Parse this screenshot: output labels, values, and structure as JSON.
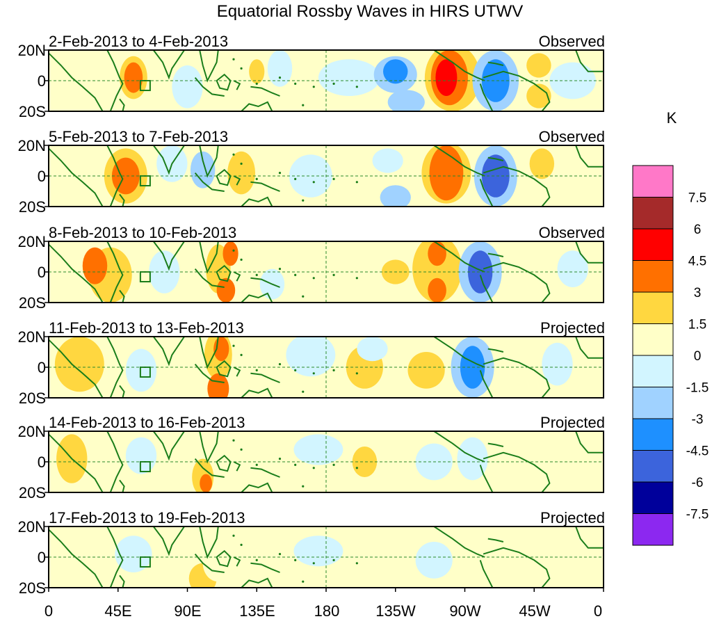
{
  "title": "Equatorial Rossby Waves in HIRS UTWV",
  "units_label": "K",
  "panels": [
    {
      "date_range": "2-Feb-2013 to 4-Feb-2013",
      "status": "Observed"
    },
    {
      "date_range": "5-Feb-2013 to 7-Feb-2013",
      "status": "Observed"
    },
    {
      "date_range": "8-Feb-2013 to 10-Feb-2013",
      "status": "Observed"
    },
    {
      "date_range": "11-Feb-2013 to 13-Feb-2013",
      "status": "Projected"
    },
    {
      "date_range": "14-Feb-2013 to 16-Feb-2013",
      "status": "Projected"
    },
    {
      "date_range": "17-Feb-2013 to 19-Feb-2013",
      "status": "Projected"
    }
  ],
  "lat_labels": [
    "20N",
    "0",
    "20S"
  ],
  "lon_labels": [
    "0",
    "45E",
    "90E",
    "135E",
    "180",
    "135W",
    "90W",
    "45W",
    "0"
  ],
  "colorbar": {
    "labels": [
      "7.5",
      "6",
      "4.5",
      "3",
      "1.5",
      "0",
      "-1.5",
      "-3",
      "-4.5",
      "-6",
      "-7.5"
    ],
    "colors": [
      "#ff78c8",
      "#a52a2a",
      "#ff0000",
      "#ff7000",
      "#ffd740",
      "#ffffc8",
      "#d2f5ff",
      "#a0d2ff",
      "#1e90ff",
      "#3c64dc",
      "#00009b",
      "#8c28f0"
    ]
  },
  "line_colors": {
    "coast": "#1a7d1a",
    "grid": "#2a8a2a"
  }
}
